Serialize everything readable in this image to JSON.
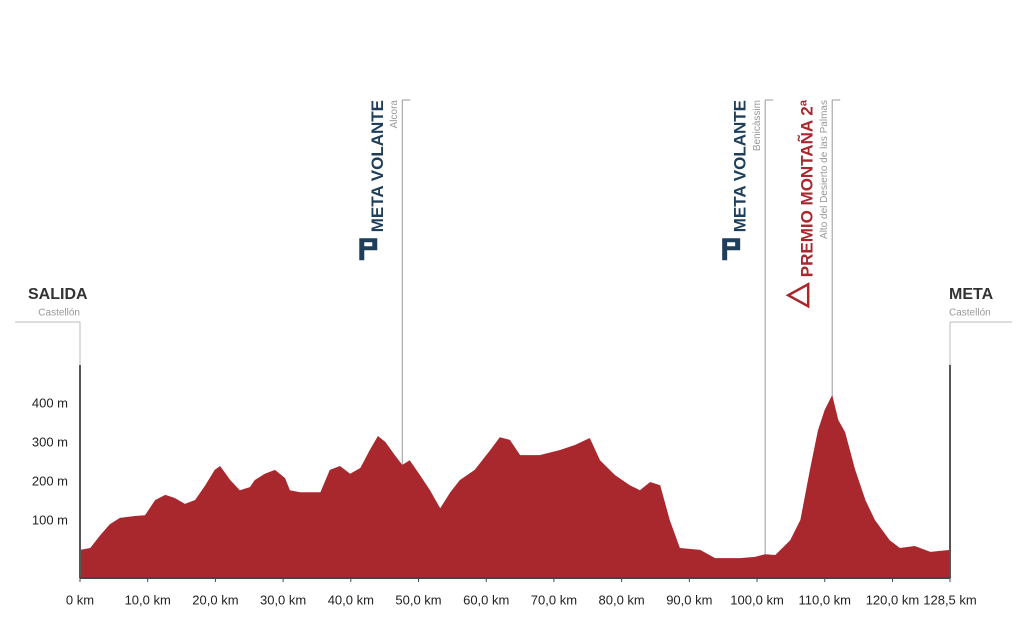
{
  "chart_data": {
    "type": "area",
    "color": "#a8282e",
    "x": [
      0,
      1.5,
      3.0,
      4.4,
      5.9,
      8.1,
      9.6,
      11.1,
      12.6,
      14.0,
      15.5,
      17.0,
      18.5,
      19.9,
      20.7,
      22.2,
      23.6,
      25.1,
      25.8,
      27.3,
      28.8,
      30.3,
      31.0,
      32.5,
      35.5,
      36.9,
      38.4,
      39.9,
      41.4,
      42.8,
      44.0,
      45.1,
      46.5,
      47.6,
      48.7,
      50.2,
      51.7,
      53.2,
      54.7,
      56.1,
      58.3,
      60.6,
      62.0,
      63.5,
      65.0,
      67.9,
      70.9,
      73.1,
      75.3,
      76.8,
      79.0,
      81.2,
      82.7,
      84.2,
      85.7,
      87.1,
      88.6,
      91.6,
      93.8,
      97.5,
      99.7,
      101.2,
      102.7,
      104.9,
      106.4,
      107.8,
      109.0,
      110.0,
      111.1,
      112.0,
      113.0,
      114.5,
      116.0,
      117.4,
      119.6,
      121.1,
      123.3,
      125.6,
      128.5
    ],
    "values": [
      26,
      31,
      64,
      92,
      108,
      113,
      115,
      154,
      167,
      159,
      144,
      154,
      192,
      231,
      241,
      205,
      179,
      187,
      205,
      221,
      231,
      210,
      179,
      174,
      174,
      231,
      241,
      221,
      236,
      282,
      318,
      303,
      269,
      244,
      256,
      218,
      179,
      133,
      174,
      205,
      231,
      282,
      315,
      308,
      269,
      269,
      282,
      295,
      313,
      256,
      218,
      192,
      179,
      200,
      192,
      103,
      31,
      26,
      5,
      5,
      8,
      15,
      13,
      51,
      103,
      231,
      333,
      385,
      423,
      359,
      328,
      231,
      154,
      103,
      51,
      31,
      36,
      21,
      26
    ],
    "xlim": [
      0,
      128.5
    ],
    "xticks": [
      {
        "value": 0,
        "label": "0 km"
      },
      {
        "value": 10,
        "label": "10,0 km"
      },
      {
        "value": 20,
        "label": "20,0 km"
      },
      {
        "value": 30,
        "label": "30,0 km"
      },
      {
        "value": 40,
        "label": "40,0 km"
      },
      {
        "value": 50,
        "label": "50,0 km"
      },
      {
        "value": 60,
        "label": "60,0 km"
      },
      {
        "value": 70,
        "label": "70,0 km"
      },
      {
        "value": 80,
        "label": "80,0 km"
      },
      {
        "value": 90,
        "label": "90,0 km"
      },
      {
        "value": 100,
        "label": "100,0 km"
      },
      {
        "value": 110,
        "label": "110,0 km"
      },
      {
        "value": 120,
        "label": "120,0 km"
      },
      {
        "value": 128.5,
        "label": "128,5 km"
      }
    ],
    "ylim": [
      -46,
      500
    ],
    "yticks": [
      {
        "value": 100,
        "label": "100 m"
      },
      {
        "value": 200,
        "label": "200 m"
      },
      {
        "value": 300,
        "label": "300 m"
      },
      {
        "value": 400,
        "label": "400 m"
      }
    ],
    "start": {
      "label": "SALIDA",
      "place": "Castellón"
    },
    "finish": {
      "label": "META",
      "place": "Castellón"
    },
    "annotations": [
      {
        "x": 47.6,
        "label": "META VOLANTE",
        "place": "Alcora",
        "color": "#1f3e5a",
        "icon": "sprint"
      },
      {
        "x": 101.2,
        "label": "META VOLANTE",
        "place": "Benicàssim",
        "color": "#1f3e5a",
        "icon": "sprint"
      },
      {
        "x": 111.1,
        "label": "PREMIO MONTAÑA 2ª",
        "place": "Alto del Desierto de las Palmas",
        "color": "#a8282e",
        "icon": "mountain"
      }
    ]
  }
}
